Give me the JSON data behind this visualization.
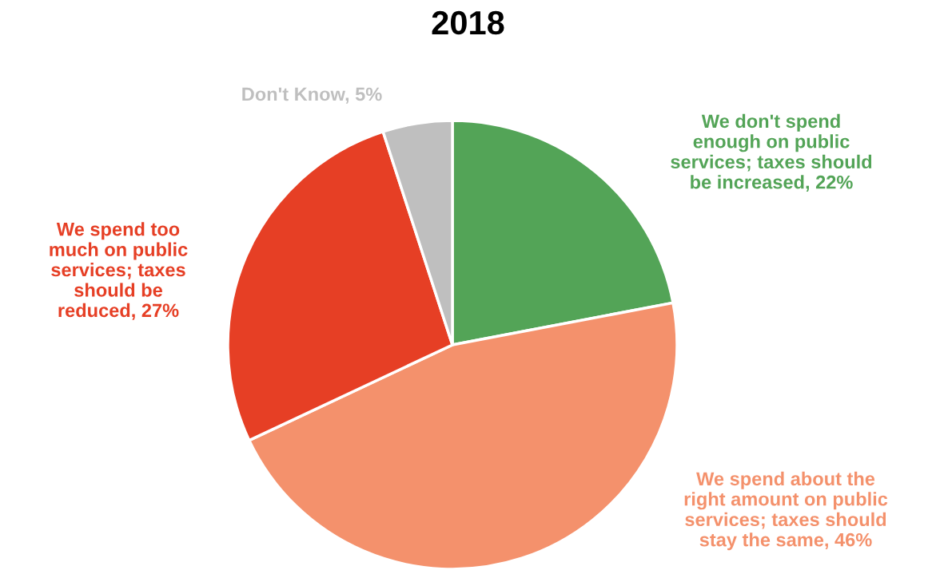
{
  "chart_data": {
    "type": "pie",
    "title": "2018",
    "categories": [
      "We don't spend\nenough on public\nservices; taxes should\nbe increased, 22%",
      "We spend about the\nright amount on public\nservices; taxes should\nstay the same, 46%",
      "We spend too\nmuch on public\nservices; taxes\nshould be\nreduced, 27%",
      "Don't Know, 5%"
    ],
    "values": [
      22,
      46,
      27,
      5
    ],
    "colors": [
      "#53a457",
      "#f4916c",
      "#e63f25",
      "#bfbfbf"
    ],
    "legend": false
  }
}
